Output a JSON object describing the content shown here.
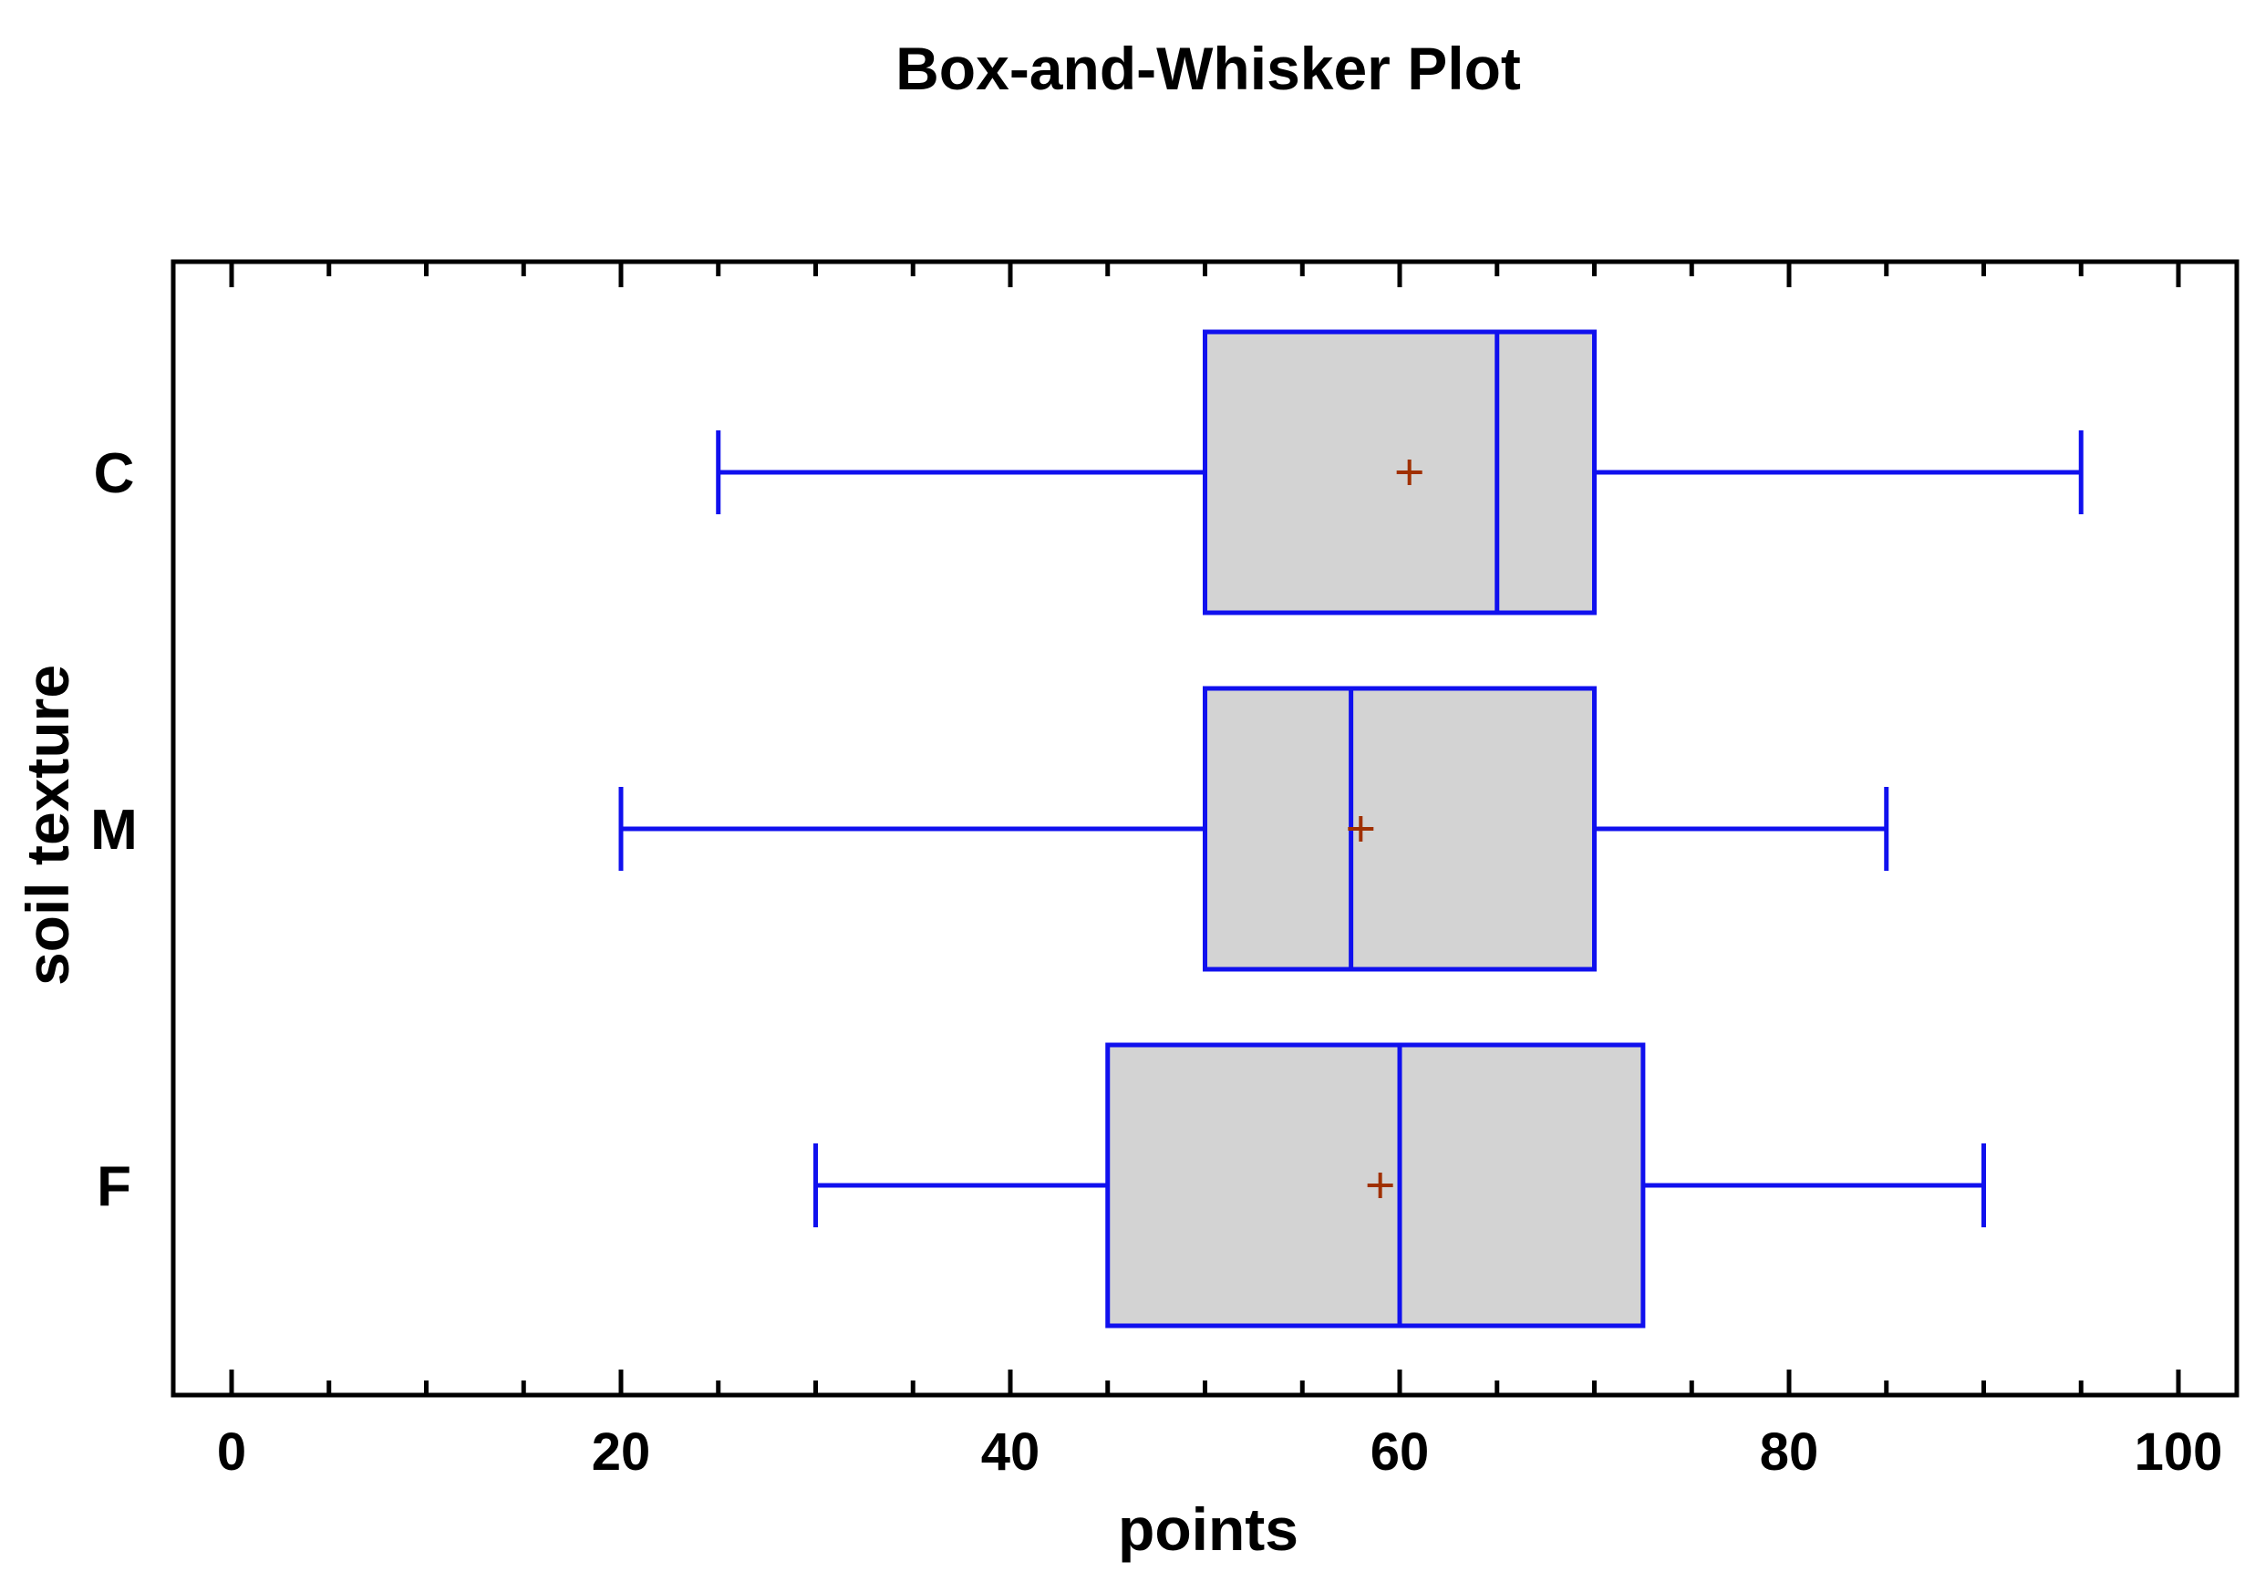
{
  "chart_data": {
    "type": "box",
    "title": "Box-and-Whisker Plot",
    "xlabel": "points",
    "ylabel": "soil texture",
    "xlim": [
      0,
      100
    ],
    "x_ticks": [
      0,
      20,
      40,
      60,
      80,
      100
    ],
    "x_tick_labels": [
      "0",
      "20",
      "40",
      "60",
      "80",
      "100"
    ],
    "categories": [
      "C",
      "M",
      "F"
    ],
    "series": [
      {
        "category": "C",
        "min": 25,
        "q1": 50,
        "median": 65,
        "q3": 70,
        "max": 95,
        "mean": 60.5
      },
      {
        "category": "M",
        "min": 20,
        "q1": 50,
        "median": 57.5,
        "q3": 70,
        "max": 85,
        "mean": 58
      },
      {
        "category": "F",
        "min": 30,
        "q1": 45,
        "median": 60,
        "q3": 72.5,
        "max": 90,
        "mean": 59
      }
    ],
    "colors": {
      "box_fill": "#d3d3d3",
      "box_stroke": "#1010ee",
      "mean_marker": "#a03000",
      "frame": "#000000"
    },
    "grid": false
  }
}
